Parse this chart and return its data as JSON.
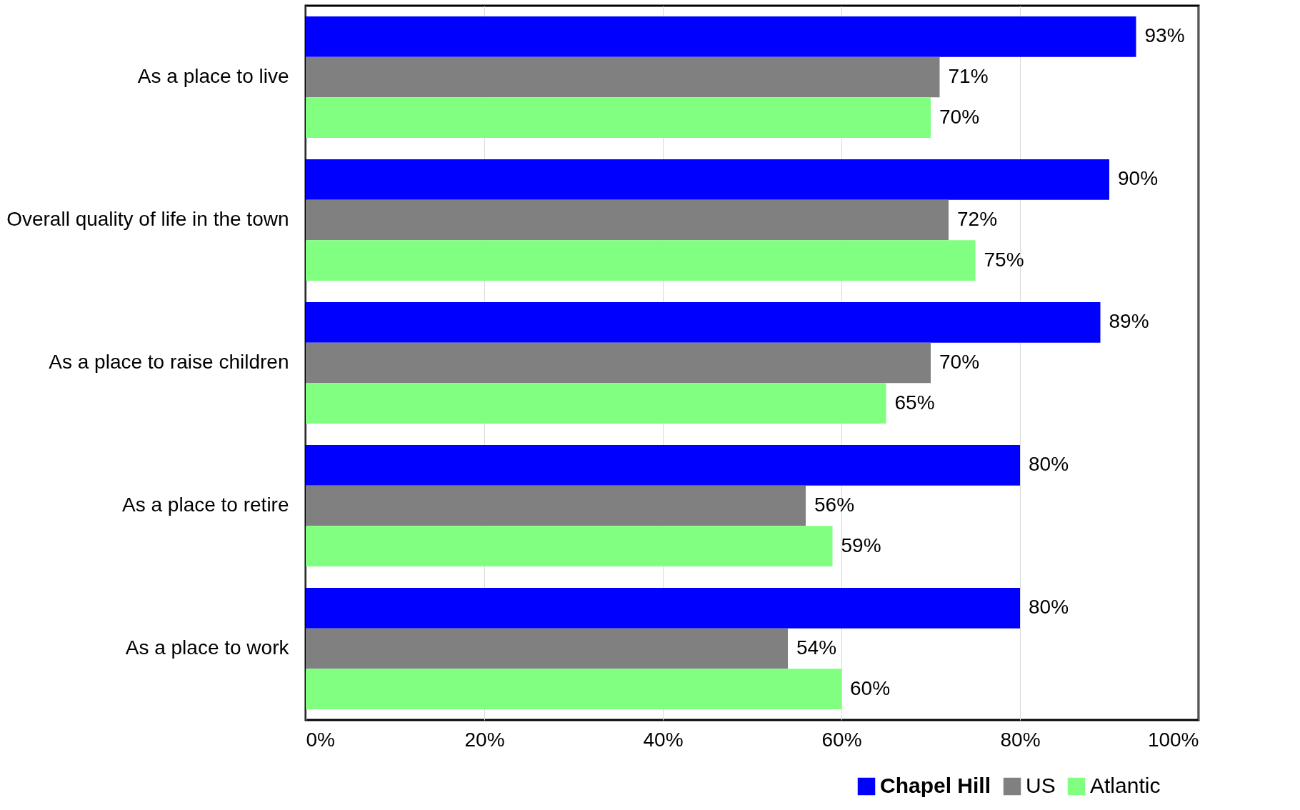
{
  "chart_data": {
    "type": "bar",
    "orientation": "horizontal",
    "categories": [
      "As a place to live",
      "Overall quality of life in the town",
      "As a place to raise children",
      "As a place to retire",
      "As a place to work"
    ],
    "series": [
      {
        "name": "Chapel Hill",
        "color": "#0000ff",
        "values": [
          93,
          90,
          89,
          80,
          80
        ],
        "value_labels": [
          "93%",
          "90%",
          "89%",
          "80%",
          "80%"
        ]
      },
      {
        "name": "US",
        "color": "#808080",
        "values": [
          71,
          72,
          70,
          56,
          54
        ],
        "value_labels": [
          "71%",
          "72%",
          "70%",
          "56%",
          "54%"
        ]
      },
      {
        "name": "Atlantic",
        "color": "#80ff80",
        "values": [
          70,
          75,
          65,
          59,
          60
        ],
        "value_labels": [
          "70%",
          "75%",
          "65%",
          "59%",
          "60%"
        ]
      }
    ],
    "xlim": [
      0,
      100
    ],
    "xticks": [
      {
        "value": 0,
        "label": "0%"
      },
      {
        "value": 20,
        "label": "20%"
      },
      {
        "value": 40,
        "label": "40%"
      },
      {
        "value": 60,
        "label": "60%"
      },
      {
        "value": 80,
        "label": "80%"
      },
      {
        "value": 100,
        "label": "100%"
      }
    ],
    "grid": "x",
    "legend": "bottom right"
  }
}
